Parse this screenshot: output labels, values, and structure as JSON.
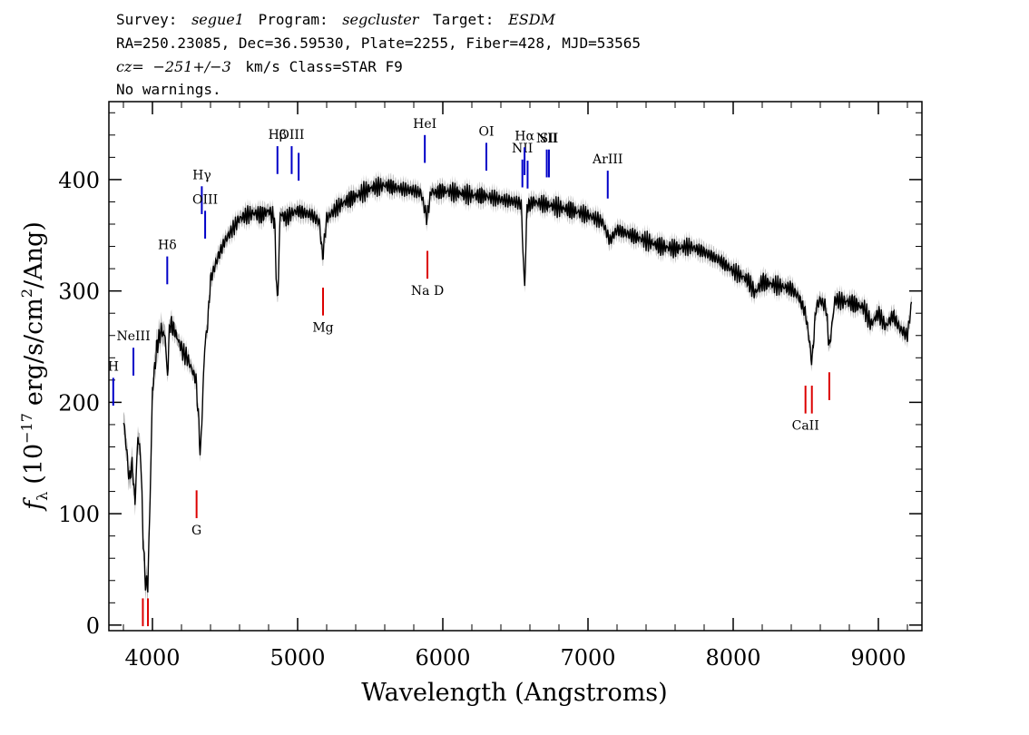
{
  "header": {
    "line1": {
      "survey_label": "Survey:",
      "survey_value": "segue1",
      "program_label": "Program:",
      "program_value": "segcluster",
      "target_label": "Target:",
      "target_value": "ESDM"
    },
    "line2": "RA=250.23085, Dec=36.59530, Plate=2255, Fiber=428, MJD=53565",
    "line3": {
      "cz_label": "cz=",
      "cz_value": "−251+/−3",
      "cz_rest": "km/s Class=STAR F9"
    },
    "line4": "No warnings."
  },
  "colors": {
    "spectrum": "#000000",
    "error_band": "#b4b4b4",
    "emission_line": "#0000c8",
    "absorption_line": "#dc0000"
  },
  "chart_data": {
    "type": "line",
    "xlabel": "Wavelength (Angstroms)",
    "ylabel_main": "f",
    "ylabel_sub": "λ",
    "ylabel_rest": "(10",
    "ylabel_exp": "−17",
    "ylabel_units": "erg/s/cm",
    "ylabel_exp2": "2",
    "ylabel_end": "/Ang)",
    "xlim": [
      3700,
      9300
    ],
    "ylim": [
      -5,
      470
    ],
    "x_ticks": [
      4000,
      5000,
      6000,
      7000,
      8000,
      9000
    ],
    "x_tick_labels": [
      "4000",
      "5000",
      "6000",
      "7000",
      "8000",
      "9000"
    ],
    "y_ticks": [
      0,
      100,
      200,
      300,
      400
    ],
    "y_tick_labels": [
      "0",
      "100",
      "200",
      "300",
      "400"
    ],
    "spectrum": {
      "x": [
        3800,
        3820,
        3840,
        3860,
        3880,
        3900,
        3920,
        3935,
        3950,
        3968,
        3985,
        4000,
        4030,
        4060,
        4090,
        4102,
        4120,
        4150,
        4180,
        4210,
        4240,
        4270,
        4300,
        4320,
        4330,
        4345,
        4360,
        4380,
        4400,
        4450,
        4500,
        4550,
        4600,
        4650,
        4700,
        4750,
        4800,
        4840,
        4861,
        4880,
        4920,
        4960,
        5000,
        5050,
        5100,
        5150,
        5172,
        5200,
        5250,
        5300,
        5400,
        5500,
        5600,
        5700,
        5800,
        5850,
        5890,
        5920,
        5950,
        6000,
        6100,
        6200,
        6300,
        6400,
        6500,
        6540,
        6563,
        6580,
        6620,
        6700,
        6800,
        6900,
        7000,
        7100,
        7150,
        7200,
        7300,
        7400,
        7500,
        7600,
        7700,
        7800,
        7900,
        8000,
        8100,
        8150,
        8200,
        8300,
        8400,
        8450,
        8498,
        8520,
        8542,
        8570,
        8600,
        8640,
        8662,
        8700,
        8800,
        8900,
        8950,
        9000,
        9050,
        9100,
        9150,
        9200,
        9230
      ],
      "y": [
        185,
        160,
        130,
        145,
        110,
        170,
        150,
        80,
        40,
        35,
        120,
        210,
        250,
        265,
        258,
        220,
        272,
        265,
        255,
        245,
        240,
        230,
        220,
        180,
        150,
        200,
        250,
        270,
        310,
        330,
        345,
        355,
        365,
        368,
        370,
        368,
        372,
        365,
        285,
        370,
        365,
        370,
        372,
        370,
        368,
        362,
        330,
        365,
        372,
        378,
        385,
        392,
        395,
        392,
        390,
        388,
        365,
        390,
        388,
        390,
        388,
        386,
        385,
        382,
        380,
        378,
        300,
        375,
        380,
        378,
        375,
        372,
        368,
        362,
        345,
        355,
        350,
        345,
        340,
        338,
        340,
        335,
        328,
        318,
        310,
        298,
        308,
        305,
        302,
        295,
        280,
        260,
        235,
        285,
        292,
        285,
        248,
        292,
        290,
        285,
        270,
        280,
        268,
        278,
        266,
        260,
        290
      ]
    },
    "emission_lines": [
      {
        "label": "H",
        "x": 3730,
        "y_bottom": 197,
        "y_top": 222
      },
      {
        "label": "NeIII",
        "x": 3869,
        "y_bottom": 224,
        "y_top": 249
      },
      {
        "label": "Hδ",
        "x": 4102,
        "y_bottom": 306,
        "y_top": 331
      },
      {
        "label": "Hγ",
        "x": 4340,
        "y_bottom": 369,
        "y_top": 394
      },
      {
        "label": "OIII",
        "x": 4363,
        "y_bottom": 347,
        "y_top": 372
      },
      {
        "label": "Hβ",
        "x": 4861,
        "y_bottom": 405,
        "y_top": 430
      },
      {
        "label": "OIII",
        "x": 4959,
        "y_bottom": 405,
        "y_top": 430
      },
      {
        "label": "",
        "x": 5007,
        "y_bottom": 399,
        "y_top": 424
      },
      {
        "label": "HeI",
        "x": 5876,
        "y_bottom": 415,
        "y_top": 440
      },
      {
        "label": "OI",
        "x": 6300,
        "y_bottom": 408,
        "y_top": 433
      },
      {
        "label": "NII",
        "x": 6548,
        "y_bottom": 393,
        "y_top": 418
      },
      {
        "label": "Hα",
        "x": 6563,
        "y_bottom": 404,
        "y_top": 429
      },
      {
        "label": "",
        "x": 6584,
        "y_bottom": 392,
        "y_top": 417
      },
      {
        "label": "NII",
        "x": 6716,
        "y_bottom": 402,
        "y_top": 427
      },
      {
        "label": "SII",
        "x": 6731,
        "y_bottom": 402,
        "y_top": 427
      },
      {
        "label": "ArIII",
        "x": 7136,
        "y_bottom": 383,
        "y_top": 408
      }
    ],
    "absorption_lines": [
      {
        "label": "",
        "x": 3934,
        "y_bottom": -1,
        "y_top": 24
      },
      {
        "label": "",
        "x": 3969,
        "y_bottom": -1,
        "y_top": 24
      },
      {
        "label": "G",
        "x": 4304,
        "y_bottom": 96,
        "y_top": 121
      },
      {
        "label": "Mg",
        "x": 5175,
        "y_bottom": 278,
        "y_top": 303
      },
      {
        "label": "Na D",
        "x": 5894,
        "y_bottom": 311,
        "y_top": 336
      },
      {
        "label": "CaII",
        "x": 8498,
        "y_bottom": 190,
        "y_top": 215
      },
      {
        "label": "",
        "x": 8542,
        "y_bottom": 190,
        "y_top": 215
      },
      {
        "label": "",
        "x": 8662,
        "y_bottom": 202,
        "y_top": 227
      }
    ]
  }
}
